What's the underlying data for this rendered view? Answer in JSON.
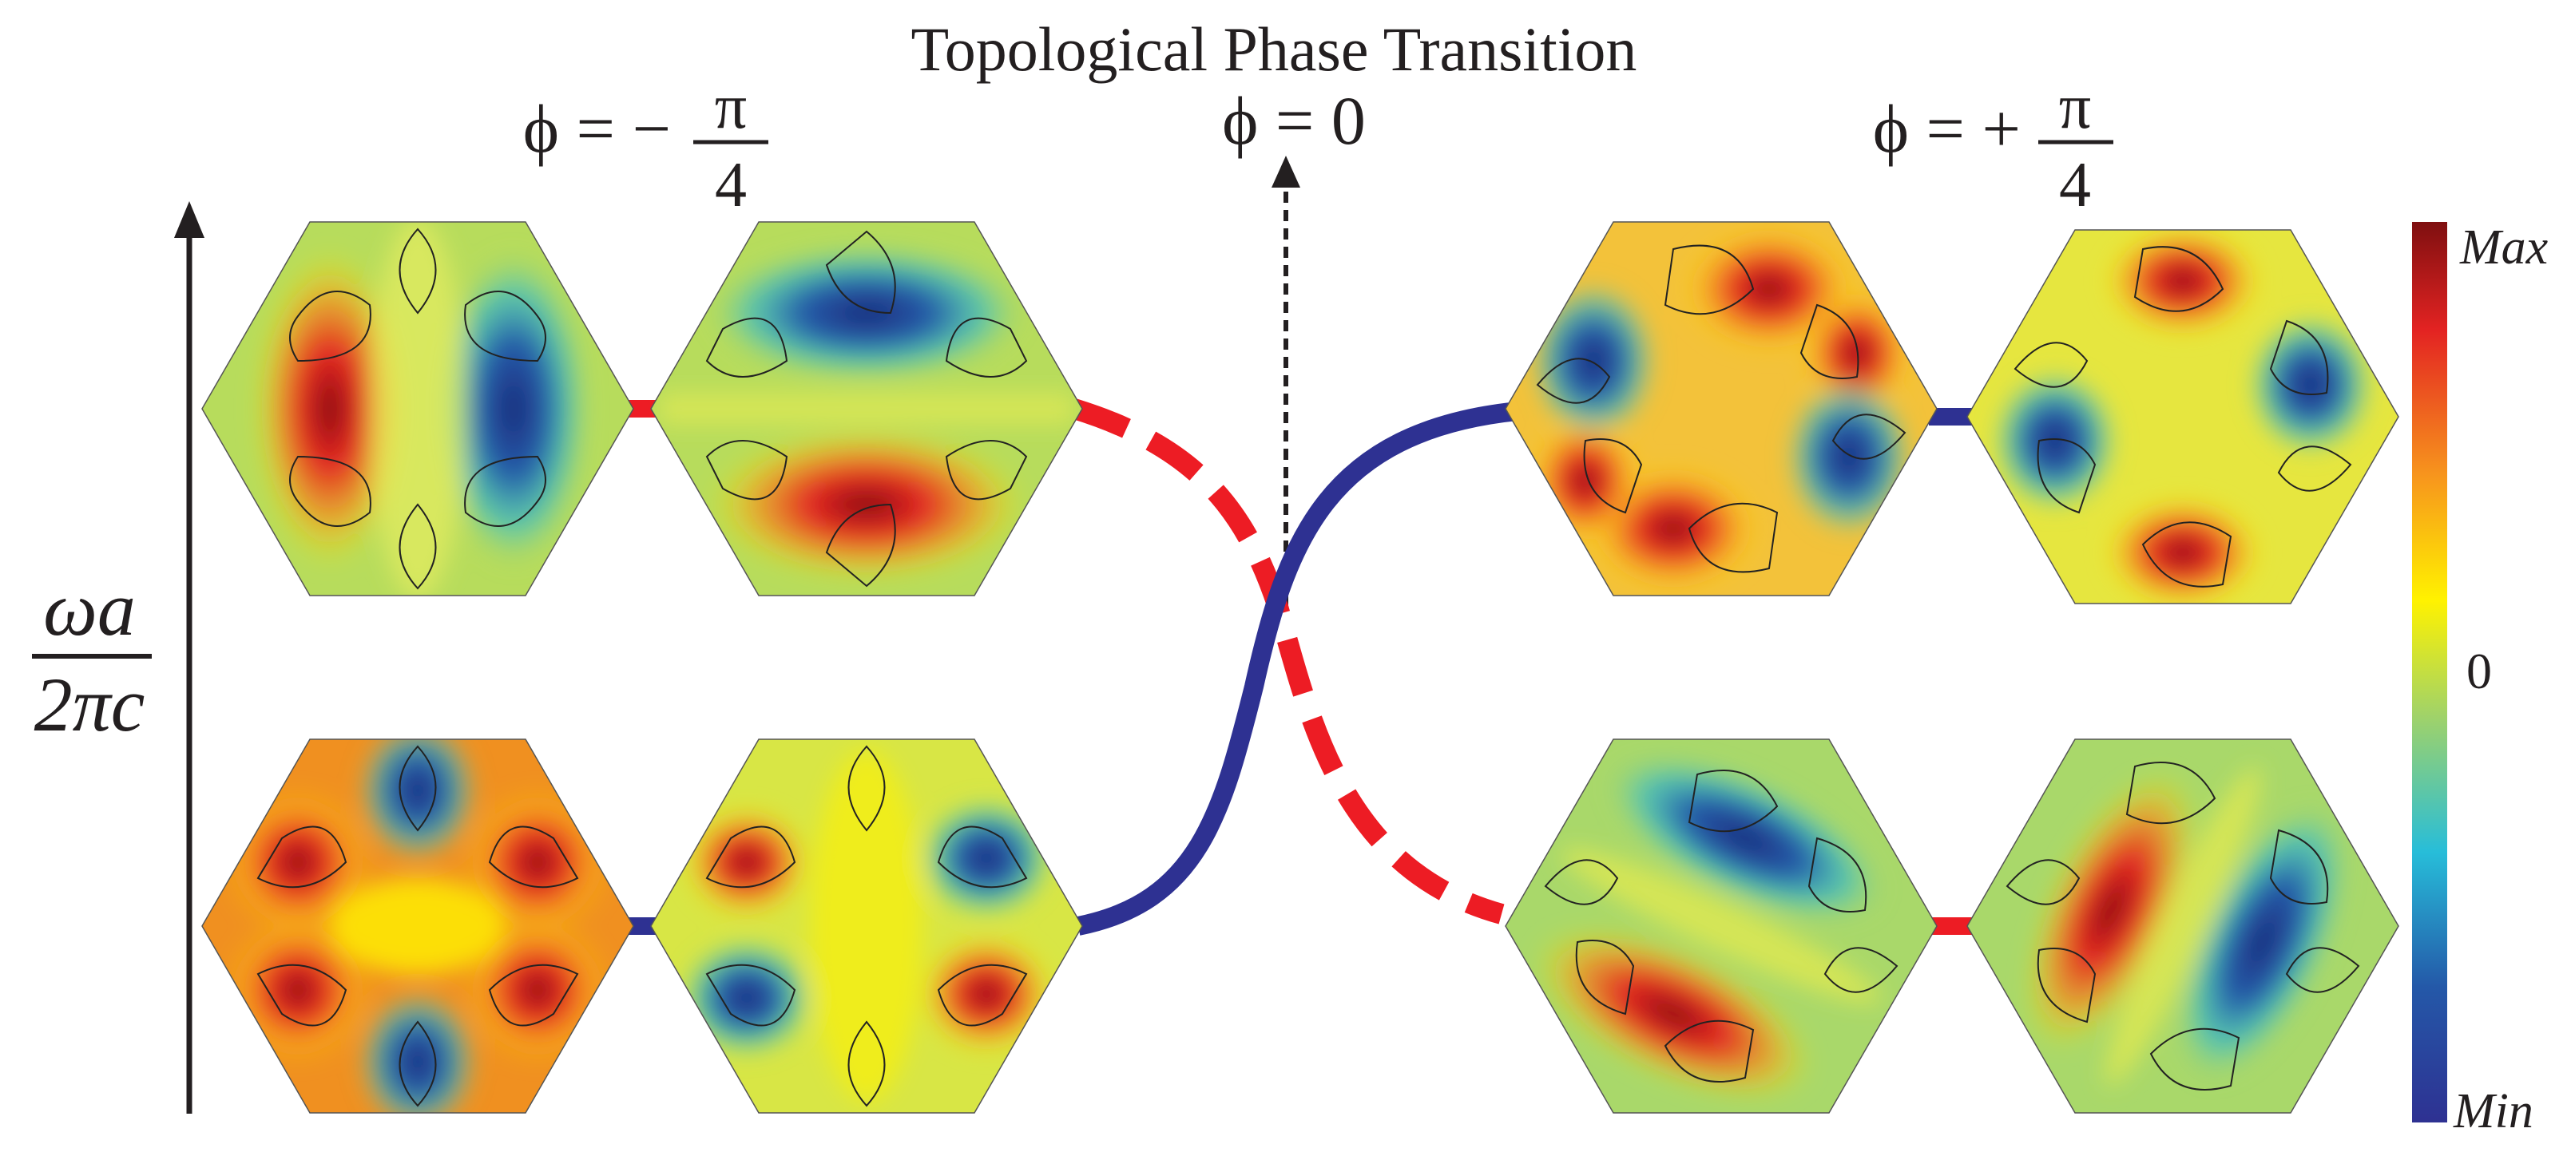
{
  "title": "Topological Phase Transition",
  "phi_labels": {
    "left": {
      "prefix": "ϕ = −",
      "num": "π",
      "den": "4"
    },
    "center": "ϕ = 0",
    "right": {
      "prefix": "ϕ = +",
      "num": "π",
      "den": "4"
    }
  },
  "y_axis_label": {
    "num": "ωa",
    "den": "2πc"
  },
  "colorbar": {
    "max_label": "Max",
    "mid_label": "0",
    "min_label": "Min",
    "colors": [
      "#7f0f10",
      "#e32322",
      "#f7941d",
      "#fff200",
      "#9fd26a",
      "#27bdd9",
      "#2458a8",
      "#2e3192"
    ]
  },
  "band_colors": {
    "blue": "#2e3192",
    "red": "#ed1c24"
  }
}
